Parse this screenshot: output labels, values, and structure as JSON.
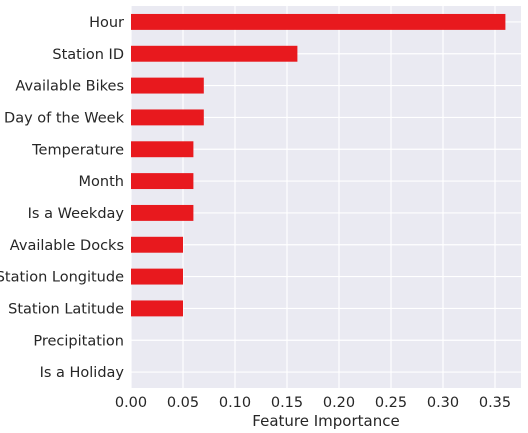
{
  "chart_data": {
    "type": "bar",
    "orientation": "horizontal",
    "categories": [
      "Hour",
      "Station ID",
      "Available Bikes",
      "Day of the Week",
      "Temperature",
      "Month",
      "Is a Weekday",
      "Available Docks",
      "Station Longitude",
      "Station Latitude",
      "Precipitation",
      "Is a Holiday"
    ],
    "values": [
      0.36,
      0.16,
      0.07,
      0.07,
      0.06,
      0.06,
      0.06,
      0.05,
      0.05,
      0.05,
      0.0,
      0.0
    ],
    "xlabel": "Feature Importance",
    "ylabel": "",
    "xlim": [
      0,
      0.375
    ],
    "xticks": [
      "0.00",
      "0.05",
      "0.10",
      "0.15",
      "0.20",
      "0.25",
      "0.30",
      "0.35"
    ],
    "grid": true,
    "colors": {
      "bar": "#e8191e",
      "plot_bg": "#eaeaf2",
      "grid": "#ffffff",
      "text": "#262626"
    }
  }
}
